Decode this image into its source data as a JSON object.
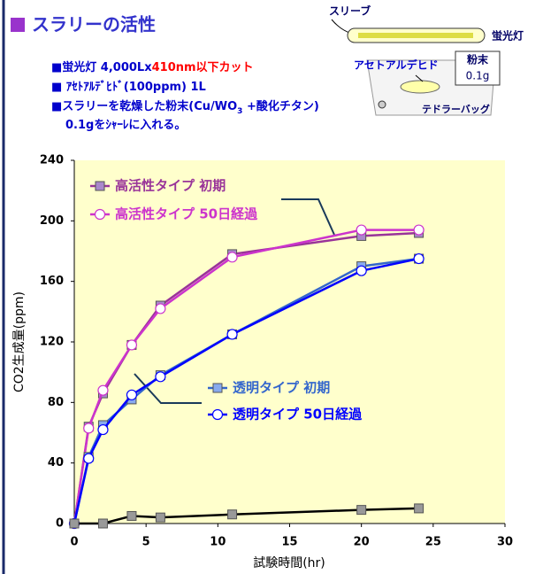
{
  "header": {
    "title": "スラリーの活性"
  },
  "notes": [
    [
      "■蛍光灯 4,000Lx",
      "410nm以下カット"
    ],
    [
      "■ ｱｾﾄｱﾙﾃﾞﾋﾄﾞ(100ppm) 1L"
    ],
    [
      "■スラリーを乾燥した粉末(Cu/WO",
      "3",
      " +酸化チタン)"
    ],
    [
      "0.1gをｼｬｰﾚに入れる。"
    ]
  ],
  "diagram": {
    "sleeve": "スリーブ",
    "lamp": "蛍光灯",
    "gas": "アセトアルデヒド",
    "powder": "粉末",
    "amount": "0.1g",
    "bag": "テドラーバッグ"
  },
  "chart_data": {
    "type": "line",
    "x_label": "試験時間(hr)",
    "y_label": "CO2生成量(ppm)",
    "xlim": [
      0,
      30
    ],
    "xticks": [
      0,
      5,
      10,
      15,
      20,
      25,
      30
    ],
    "ylim": [
      0,
      240
    ],
    "yticks": [
      0,
      40,
      80,
      120,
      160,
      200,
      240
    ],
    "series": [
      {
        "name": "高活性タイプ 初期",
        "color": "#993399",
        "marker": "square",
        "marker_color": "#aa88cc",
        "x": [
          0,
          1,
          2,
          4,
          6,
          11,
          20,
          24
        ],
        "values": [
          0,
          64,
          86,
          118,
          144,
          178,
          190,
          192
        ]
      },
      {
        "name": "高活性タイプ 50日経過",
        "color": "#cc33cc",
        "marker": "circle",
        "marker_color": "#ffffff",
        "x": [
          0,
          1,
          2,
          4,
          6,
          11,
          20,
          24
        ],
        "values": [
          0,
          63,
          88,
          118,
          142,
          176,
          194,
          194
        ]
      },
      {
        "name": "透明タイプ 初期",
        "color": "#3366cc",
        "marker": "square",
        "marker_color": "#88aaee",
        "x": [
          0,
          1,
          2,
          4,
          6,
          11,
          20,
          24
        ],
        "values": [
          0,
          44,
          65,
          82,
          98,
          125,
          170,
          175
        ]
      },
      {
        "name": "透明タイプ 50日経過",
        "color": "#0000ff",
        "marker": "circle",
        "marker_color": "#ffffff",
        "x": [
          0,
          1,
          2,
          4,
          6,
          11,
          20,
          24
        ],
        "values": [
          0,
          43,
          62,
          85,
          97,
          125,
          167,
          175
        ]
      },
      {
        "color": "#000000",
        "marker": "square",
        "marker_color": "#999999",
        "x": [
          0,
          2,
          4,
          6,
          11,
          20,
          24
        ],
        "values": [
          0,
          0,
          5,
          4,
          6,
          9,
          10
        ]
      }
    ]
  }
}
